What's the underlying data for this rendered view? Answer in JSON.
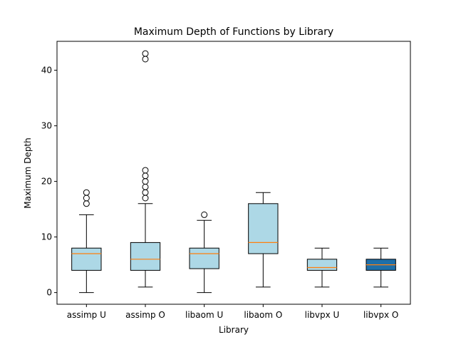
{
  "chart_data": {
    "type": "box",
    "title": "Maximum Depth of Functions by Library",
    "xlabel": "Library",
    "ylabel": "Maximum Depth",
    "ylim": [
      -2.1,
      45.2
    ],
    "yticks": [
      0,
      10,
      20,
      30,
      40
    ],
    "grid": false,
    "categories": [
      "assimp U",
      "assimp O",
      "libaom U",
      "libaom O",
      "libvpx U",
      "libvpx O"
    ],
    "boxes": [
      {
        "name": "assimp U",
        "whisker_low": 0,
        "q1": 4,
        "median": 7,
        "q3": 8,
        "whisker_high": 14,
        "outliers": [
          16,
          17,
          18
        ],
        "fill": "#add8e6"
      },
      {
        "name": "assimp O",
        "whisker_low": 1,
        "q1": 4,
        "median": 6,
        "q3": 9,
        "whisker_high": 16,
        "outliers": [
          17,
          18,
          19,
          20,
          21,
          22,
          42,
          43
        ],
        "fill": "#add8e6"
      },
      {
        "name": "libaom U",
        "whisker_low": 0,
        "q1": 4.3,
        "median": 7,
        "q3": 8,
        "whisker_high": 13,
        "outliers": [
          14
        ],
        "fill": "#add8e6"
      },
      {
        "name": "libaom O",
        "whisker_low": 1,
        "q1": 7,
        "median": 9,
        "q3": 16,
        "whisker_high": 18,
        "outliers": [],
        "fill": "#add8e6"
      },
      {
        "name": "libvpx U",
        "whisker_low": 1,
        "q1": 4,
        "median": 4.5,
        "q3": 6,
        "whisker_high": 8,
        "outliers": [],
        "fill": "#add8e6"
      },
      {
        "name": "libvpx O",
        "whisker_low": 1,
        "q1": 4,
        "median": 5,
        "q3": 6,
        "whisker_high": 8,
        "outliers": [],
        "fill": "#1f6fa8"
      }
    ],
    "median_color": "#ff7f0e"
  }
}
